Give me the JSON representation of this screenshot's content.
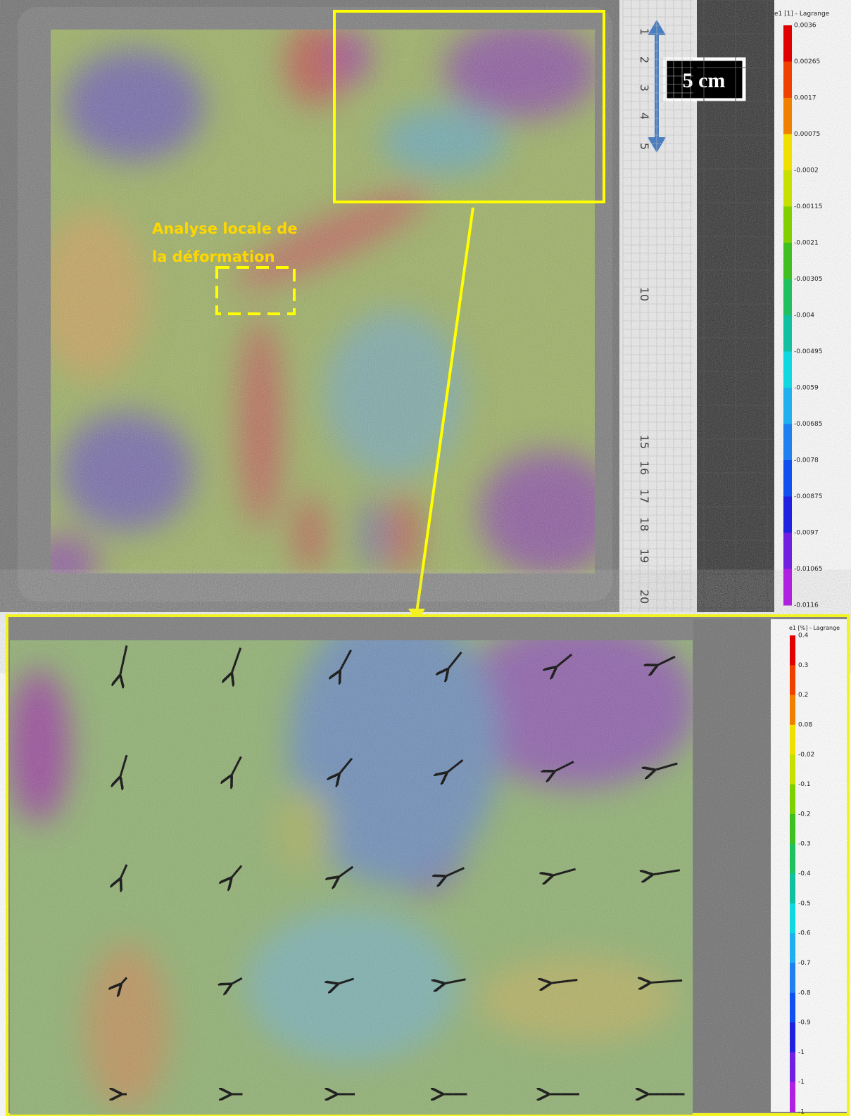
{
  "top_panel": {
    "annotation": [
      "Analyse locale de",
      "la déformation"
    ],
    "scale_label": "5 cm",
    "ruler_numbers": [
      "1",
      "2",
      "3",
      "4",
      "5",
      "10",
      "15",
      "16",
      "17",
      "18",
      "19",
      "20"
    ],
    "colorbar": {
      "title": "e1 [1] - Lagrange",
      "labels": [
        "0.0036",
        "0.00265",
        "0.0017",
        "0.00075",
        "-0.0002",
        "-0.00115",
        "-0.0021",
        "-0.00305",
        "-0.004",
        "-0.00495",
        "-0.0059",
        "-0.00685",
        "-0.0078",
        "-0.00875",
        "-0.0097",
        "-0.01065",
        "-0.0116"
      ]
    }
  },
  "bottom_panel": {
    "colorbar": {
      "title": "e1 [%] - Lagrange",
      "labels": [
        "0.4",
        "0.3",
        "0.2",
        "0.08",
        "-0.02",
        "-0.1",
        "-0.2",
        "-0.3",
        "-0.4",
        "-0.5",
        "-0.6",
        "-0.7",
        "-0.8",
        "-0.9",
        "-1",
        "-1",
        "-1"
      ]
    }
  }
}
